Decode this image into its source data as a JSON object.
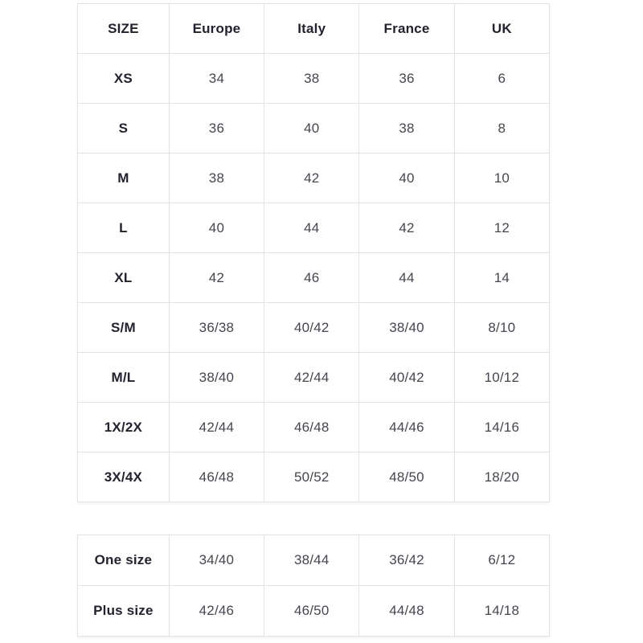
{
  "colors": {
    "background": "#ffffff",
    "border": "#e3e3e3",
    "label_text": "#23222f",
    "value_text": "#46454f"
  },
  "chart_data": {
    "type": "table",
    "title": "",
    "columns": [
      "SIZE",
      "Europe",
      "Italy",
      "France",
      "UK"
    ],
    "rows": [
      {
        "label": "XS",
        "values": [
          "34",
          "38",
          "36",
          "6"
        ]
      },
      {
        "label": "S",
        "values": [
          "36",
          "40",
          "38",
          "8"
        ]
      },
      {
        "label": "M",
        "values": [
          "38",
          "42",
          "40",
          "10"
        ]
      },
      {
        "label": "L",
        "values": [
          "40",
          "44",
          "42",
          "12"
        ]
      },
      {
        "label": "XL",
        "values": [
          "42",
          "46",
          "44",
          "14"
        ]
      },
      {
        "label": "S/M",
        "values": [
          "36/38",
          "40/42",
          "38/40",
          "8/10"
        ]
      },
      {
        "label": "M/L",
        "values": [
          "38/40",
          "42/44",
          "40/42",
          "10/12"
        ]
      },
      {
        "label": "1X/2X",
        "values": [
          "42/44",
          "46/48",
          "44/46",
          "14/16"
        ]
      },
      {
        "label": "3X/4X",
        "values": [
          "46/48",
          "50/52",
          "48/50",
          "18/20"
        ]
      }
    ],
    "secondary_rows": [
      {
        "label": "One size",
        "values": [
          "34/40",
          "38/44",
          "36/42",
          "6/12"
        ]
      },
      {
        "label": "Plus size",
        "values": [
          "42/46",
          "46/50",
          "44/48",
          "14/18"
        ]
      }
    ]
  }
}
